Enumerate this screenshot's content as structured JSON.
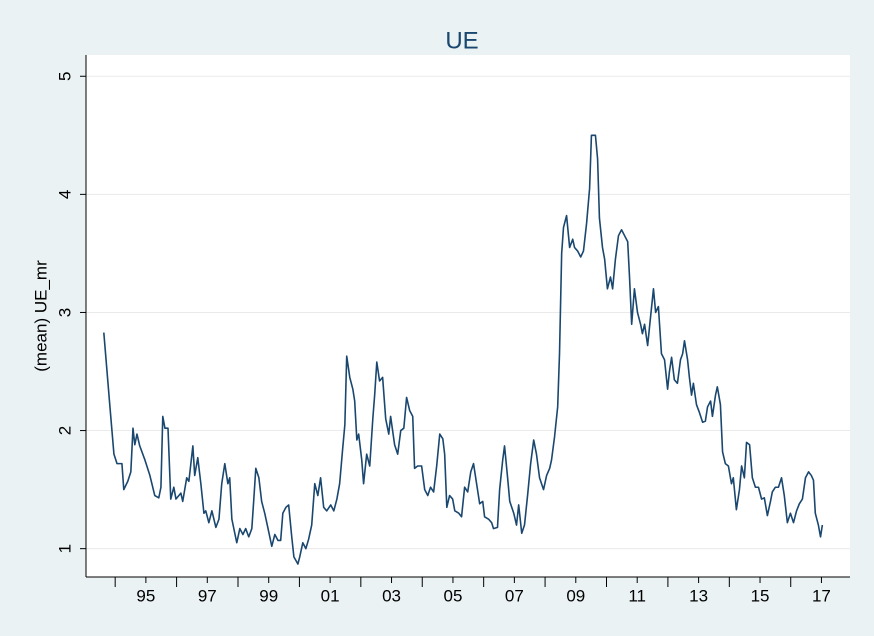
{
  "chart_data": {
    "type": "line",
    "title": "UE",
    "ylabel": "(mean) UE_mr",
    "color": "#1a476f",
    "grid": true,
    "xlim": [
      1993.05,
      2017.93
    ],
    "ylim": [
      0.76,
      5.18
    ],
    "yticks": [
      1,
      2,
      3,
      4,
      5
    ],
    "xticks": [
      {
        "value": 1995,
        "label": "95"
      },
      {
        "value": 1997,
        "label": "97"
      },
      {
        "value": 1999,
        "label": "99"
      },
      {
        "value": 2001,
        "label": "01"
      },
      {
        "value": 2003,
        "label": "03"
      },
      {
        "value": 2005,
        "label": "05"
      },
      {
        "value": 2007,
        "label": "07"
      },
      {
        "value": 2009,
        "label": "09"
      },
      {
        "value": 2011,
        "label": "11"
      },
      {
        "value": 2013,
        "label": "13"
      },
      {
        "value": 2015,
        "label": "15"
      },
      {
        "value": 2017,
        "label": "17"
      }
    ],
    "xminorticks": [
      1994,
      1996,
      1998,
      2000,
      2002,
      2004,
      2006,
      2008,
      2010,
      2012,
      2014,
      2016
    ],
    "x": [
      1993.63,
      1993.83,
      1993.96,
      1994.06,
      1994.22,
      1994.28,
      1994.41,
      1994.51,
      1994.58,
      1994.64,
      1994.71,
      1994.8,
      1994.97,
      1995.13,
      1995.29,
      1995.42,
      1995.49,
      1995.55,
      1995.62,
      1995.72,
      1995.81,
      1995.91,
      1995.98,
      1996.14,
      1996.2,
      1996.33,
      1996.4,
      1996.53,
      1996.59,
      1996.69,
      1996.79,
      1996.89,
      1996.95,
      1997.05,
      1997.15,
      1997.28,
      1997.38,
      1997.47,
      1997.57,
      1997.67,
      1997.73,
      1997.8,
      1997.96,
      1998.06,
      1998.16,
      1998.25,
      1998.35,
      1998.45,
      1998.51,
      1998.58,
      1998.68,
      1998.77,
      1998.87,
      1998.97,
      1999.1,
      1999.2,
      1999.3,
      1999.39,
      1999.46,
      1999.56,
      1999.65,
      1999.75,
      1999.82,
      1999.95,
      2000.01,
      2000.11,
      2000.21,
      2000.3,
      2000.4,
      2000.5,
      2000.6,
      2000.69,
      2000.79,
      2000.89,
      2001.02,
      2001.12,
      2001.22,
      2001.31,
      2001.41,
      2001.48,
      2001.54,
      2001.64,
      2001.74,
      2001.8,
      2001.87,
      2001.93,
      2002.03,
      2002.09,
      2002.19,
      2002.29,
      2002.39,
      2002.45,
      2002.52,
      2002.61,
      2002.71,
      2002.81,
      2002.91,
      2002.97,
      2003.1,
      2003.2,
      2003.3,
      2003.4,
      2003.49,
      2003.59,
      2003.69,
      2003.75,
      2003.85,
      2003.98,
      2004.08,
      2004.18,
      2004.27,
      2004.37,
      2004.47,
      2004.57,
      2004.67,
      2004.73,
      2004.8,
      2004.89,
      2004.99,
      2005.06,
      2005.19,
      2005.28,
      2005.38,
      2005.48,
      2005.58,
      2005.67,
      2005.77,
      2005.87,
      2005.97,
      2006.03,
      2006.16,
      2006.26,
      2006.32,
      2006.45,
      2006.52,
      2006.62,
      2006.68,
      2006.78,
      2006.85,
      2006.98,
      2007.07,
      2007.14,
      2007.24,
      2007.33,
      2007.43,
      2007.53,
      2007.63,
      2007.72,
      2007.82,
      2007.95,
      2008.05,
      2008.15,
      2008.21,
      2008.31,
      2008.41,
      2008.47,
      2008.54,
      2008.6,
      2008.7,
      2008.8,
      2008.9,
      2008.96,
      2009.06,
      2009.16,
      2009.25,
      2009.35,
      2009.45,
      2009.51,
      2009.64,
      2009.71,
      2009.77,
      2009.87,
      2009.94,
      2010.03,
      2010.13,
      2010.2,
      2010.29,
      2010.39,
      2010.49,
      2010.59,
      2010.69,
      2010.75,
      2010.82,
      2010.91,
      2011.01,
      2011.11,
      2011.17,
      2011.24,
      2011.34,
      2011.43,
      2011.53,
      2011.6,
      2011.69,
      2011.79,
      2011.89,
      2011.99,
      2012.05,
      2012.12,
      2012.21,
      2012.31,
      2012.41,
      2012.48,
      2012.54,
      2012.64,
      2012.7,
      2012.77,
      2012.83,
      2012.93,
      2013.03,
      2013.13,
      2013.22,
      2013.29,
      2013.39,
      2013.45,
      2013.55,
      2013.61,
      2013.71,
      2013.78,
      2013.87,
      2013.97,
      2014.07,
      2014.13,
      2014.23,
      2014.33,
      2014.4,
      2014.49,
      2014.56,
      2014.66,
      2014.75,
      2014.85,
      2014.95,
      2015.05,
      2015.14,
      2015.24,
      2015.34,
      2015.4,
      2015.5,
      2015.6,
      2015.7,
      2015.79,
      2015.89,
      2015.99,
      2016.09,
      2016.19,
      2016.28,
      2016.38,
      2016.48,
      2016.58,
      2016.67,
      2016.74,
      2016.8,
      2016.9,
      2016.97,
      2017.03
    ],
    "values": [
      2.83,
      2.2,
      1.8,
      1.72,
      1.72,
      1.5,
      1.57,
      1.65,
      2.02,
      1.88,
      1.97,
      1.87,
      1.75,
      1.62,
      1.45,
      1.43,
      1.52,
      2.12,
      2.02,
      2.02,
      1.42,
      1.52,
      1.42,
      1.47,
      1.4,
      1.6,
      1.57,
      1.87,
      1.62,
      1.77,
      1.55,
      1.3,
      1.32,
      1.22,
      1.32,
      1.18,
      1.25,
      1.55,
      1.72,
      1.55,
      1.6,
      1.25,
      1.05,
      1.17,
      1.12,
      1.17,
      1.1,
      1.17,
      1.4,
      1.68,
      1.6,
      1.4,
      1.3,
      1.18,
      1.02,
      1.12,
      1.07,
      1.07,
      1.3,
      1.35,
      1.37,
      1.1,
      0.93,
      0.87,
      0.93,
      1.05,
      1.0,
      1.08,
      1.2,
      1.55,
      1.45,
      1.6,
      1.35,
      1.32,
      1.37,
      1.32,
      1.42,
      1.55,
      1.85,
      2.05,
      2.63,
      2.45,
      2.35,
      2.25,
      1.92,
      1.97,
      1.75,
      1.55,
      1.8,
      1.7,
      2.1,
      2.3,
      2.58,
      2.42,
      2.45,
      2.1,
      1.97,
      2.12,
      1.88,
      1.8,
      2.0,
      2.02,
      2.28,
      2.17,
      2.12,
      1.68,
      1.7,
      1.7,
      1.5,
      1.45,
      1.52,
      1.48,
      1.7,
      1.97,
      1.93,
      1.8,
      1.35,
      1.45,
      1.42,
      1.32,
      1.3,
      1.27,
      1.52,
      1.48,
      1.65,
      1.72,
      1.55,
      1.38,
      1.4,
      1.27,
      1.25,
      1.22,
      1.17,
      1.18,
      1.5,
      1.75,
      1.87,
      1.6,
      1.4,
      1.3,
      1.2,
      1.37,
      1.13,
      1.2,
      1.45,
      1.72,
      1.92,
      1.8,
      1.6,
      1.5,
      1.62,
      1.68,
      1.75,
      1.95,
      2.2,
      2.65,
      3.5,
      3.72,
      3.82,
      3.55,
      3.62,
      3.55,
      3.52,
      3.47,
      3.52,
      3.75,
      4.05,
      4.5,
      4.5,
      4.3,
      3.8,
      3.55,
      3.45,
      3.2,
      3.3,
      3.2,
      3.45,
      3.65,
      3.7,
      3.65,
      3.6,
      3.3,
      2.9,
      3.2,
      3.0,
      2.9,
      2.82,
      2.9,
      2.72,
      2.95,
      3.2,
      3.0,
      3.05,
      2.65,
      2.6,
      2.35,
      2.5,
      2.62,
      2.43,
      2.4,
      2.6,
      2.65,
      2.76,
      2.6,
      2.45,
      2.3,
      2.4,
      2.22,
      2.15,
      2.07,
      2.08,
      2.2,
      2.25,
      2.12,
      2.3,
      2.37,
      2.22,
      1.82,
      1.72,
      1.7,
      1.55,
      1.6,
      1.33,
      1.5,
      1.7,
      1.6,
      1.9,
      1.88,
      1.6,
      1.52,
      1.52,
      1.42,
      1.43,
      1.28,
      1.4,
      1.48,
      1.52,
      1.52,
      1.6,
      1.45,
      1.22,
      1.3,
      1.22,
      1.32,
      1.38,
      1.42,
      1.6,
      1.65,
      1.62,
      1.58,
      1.3,
      1.2,
      1.1,
      1.2
    ]
  }
}
